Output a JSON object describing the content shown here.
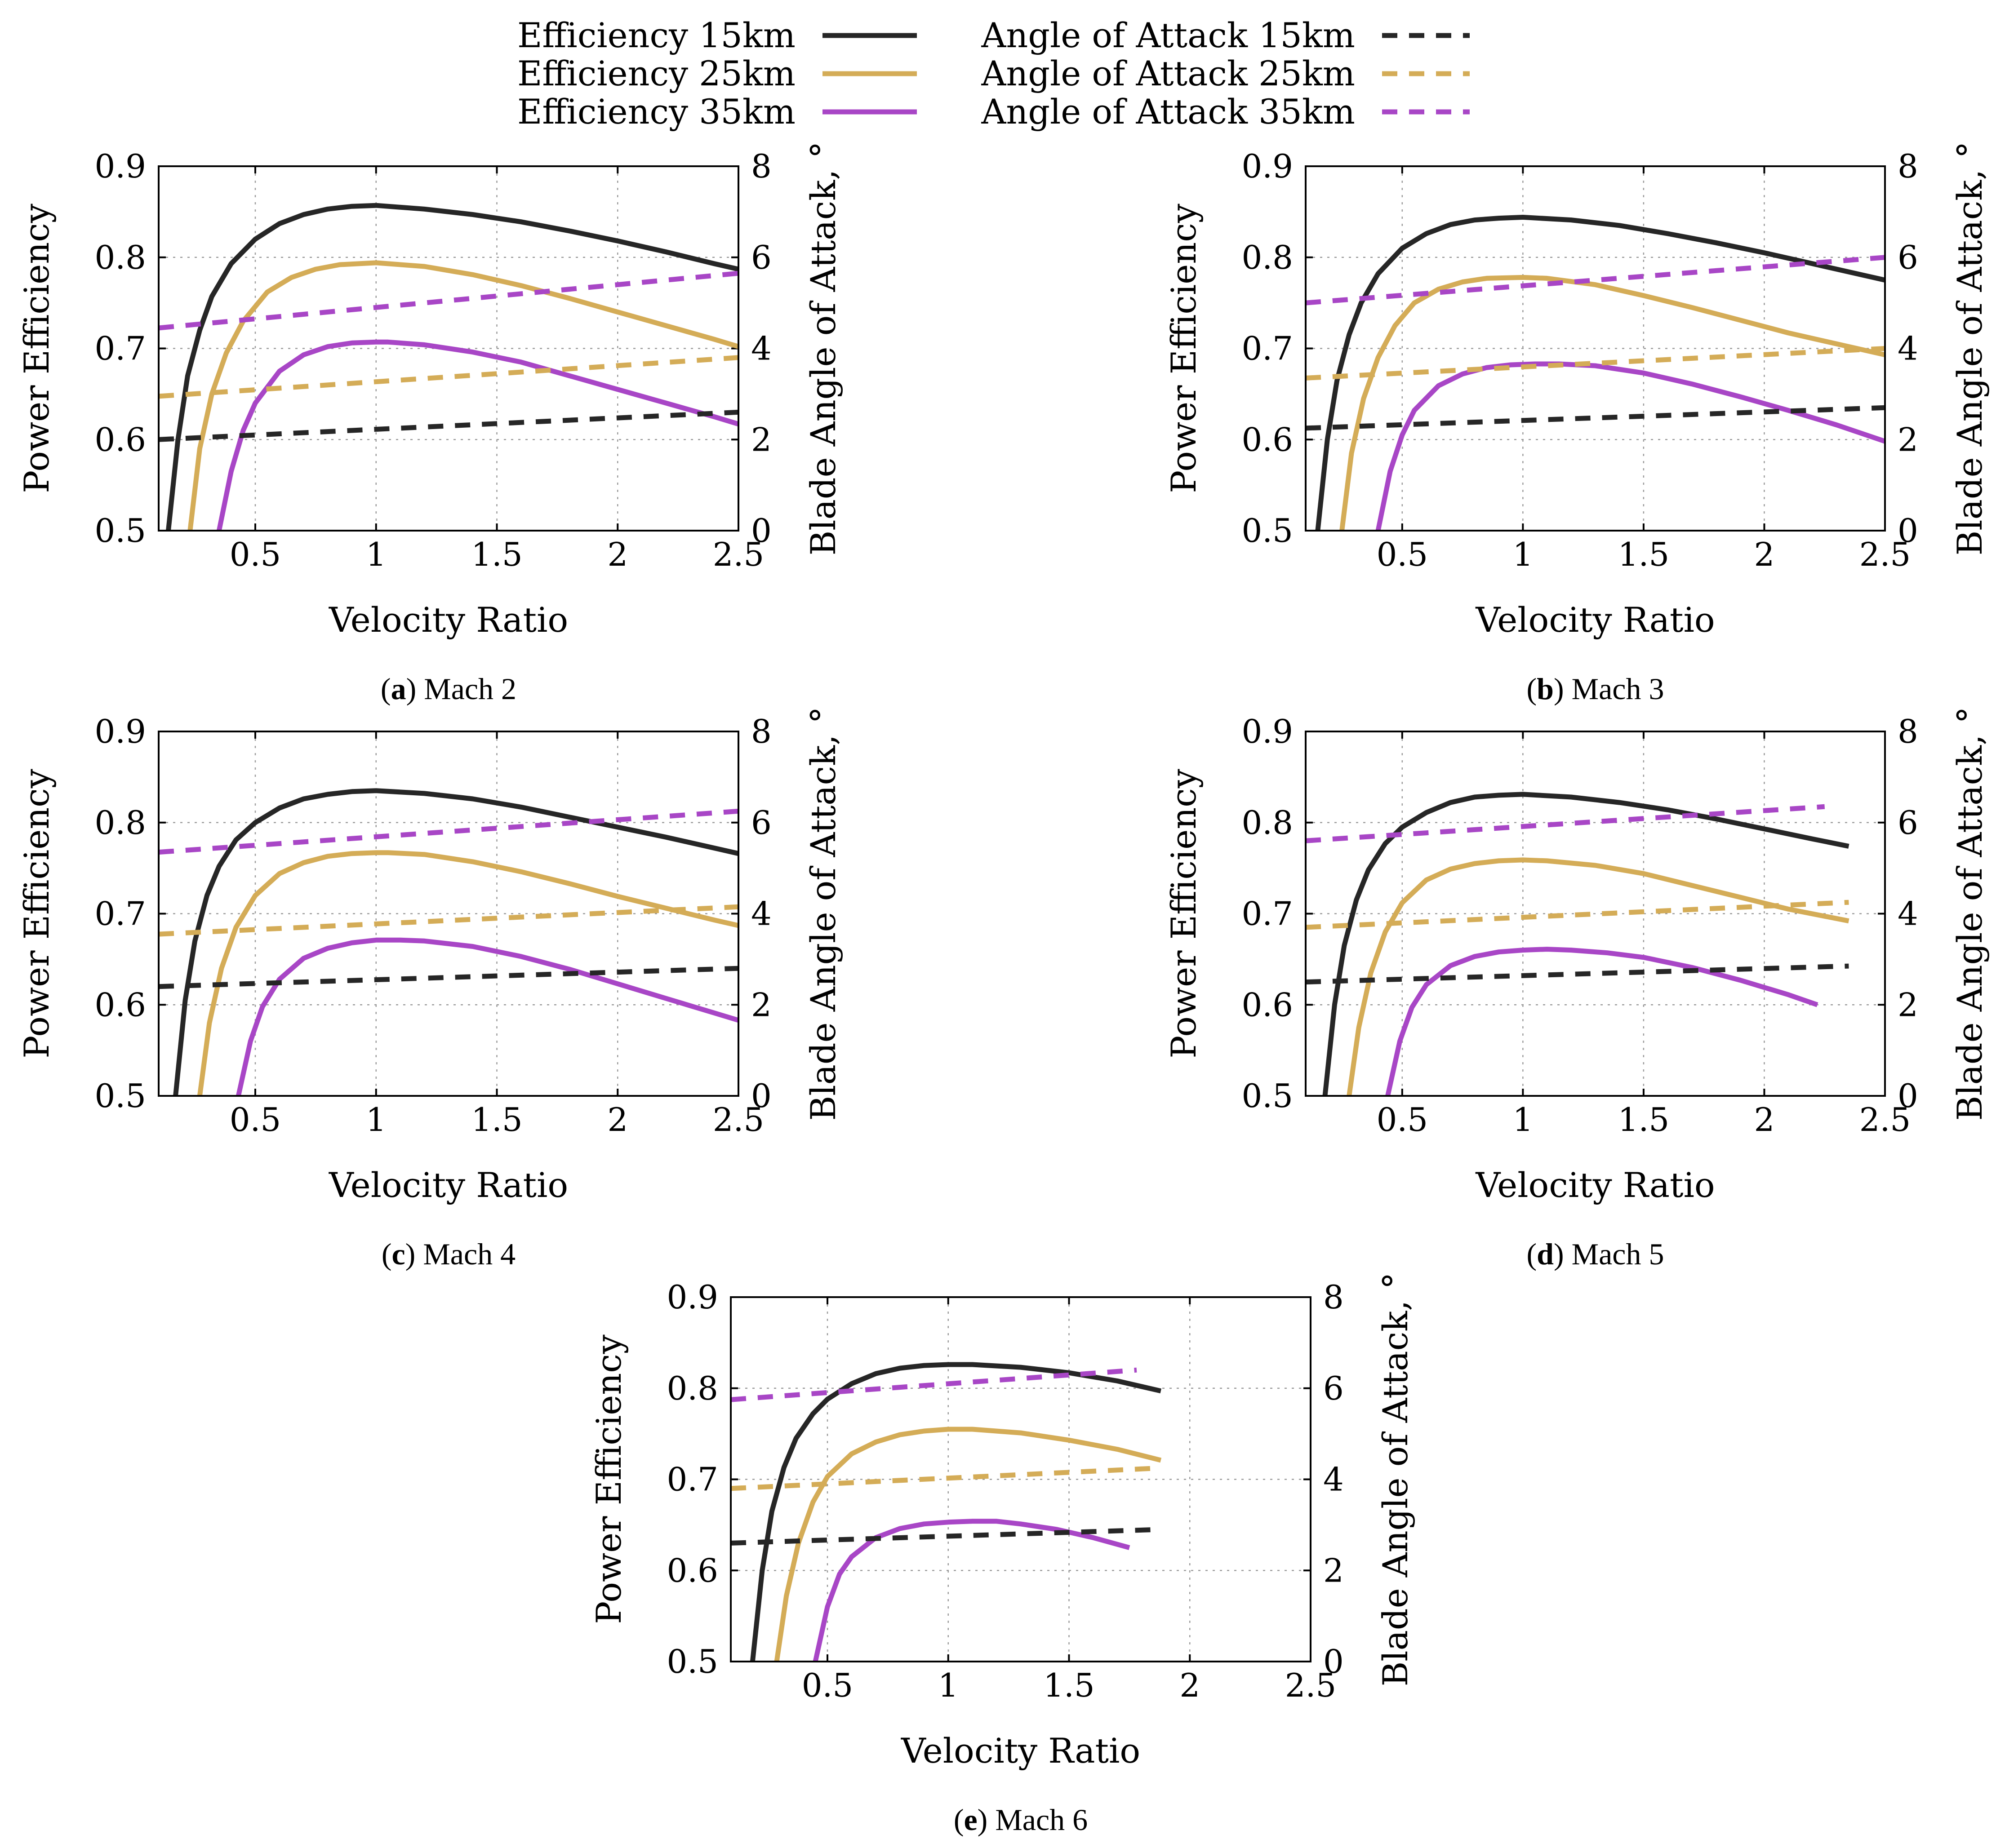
{
  "legend": {
    "items": [
      {
        "label": "Efficiency 15km",
        "altitude": "15km",
        "kind": "efficiency",
        "color": "#262626"
      },
      {
        "label": "Efficiency 25km",
        "altitude": "25km",
        "kind": "efficiency",
        "color": "#d4ac57"
      },
      {
        "label": "Efficiency 35km",
        "altitude": "35km",
        "kind": "efficiency",
        "color": "#a846c6"
      },
      {
        "label": "Angle of Attack 15km",
        "altitude": "15km",
        "kind": "aoa",
        "color": "#262626"
      },
      {
        "label": "Angle of Attack 25km",
        "altitude": "25km",
        "kind": "aoa",
        "color": "#d4ac57"
      },
      {
        "label": "Angle of Attack 35km",
        "altitude": "35km",
        "kind": "aoa",
        "color": "#a846c6"
      }
    ]
  },
  "chart_data": [
    {
      "type": "line",
      "caption_letter": "a",
      "caption_text": "Mach 2",
      "xlabel": "Velocity Ratio",
      "ylabel": "Power Efficiency",
      "y2label": "Blade Angle of Attack, °",
      "xlim": [
        0.1,
        2.5
      ],
      "ylim": [
        0.5,
        0.9
      ],
      "y2lim": [
        0,
        8
      ],
      "xticks": [
        "0.5",
        "1",
        "1.5",
        "2",
        "2.5"
      ],
      "yticks": [
        "0.5",
        "0.6",
        "0.7",
        "0.8",
        "0.9"
      ],
      "y2ticks": [
        "0",
        "2",
        "4",
        "6",
        "8"
      ],
      "grid": true,
      "series": [
        {
          "name": "Efficiency 15km",
          "axis": "y",
          "x": [
            0.14,
            0.18,
            0.22,
            0.27,
            0.32,
            0.4,
            0.5,
            0.6,
            0.7,
            0.8,
            0.9,
            1.0,
            1.2,
            1.4,
            1.6,
            1.8,
            2.0,
            2.2,
            2.4,
            2.5
          ],
          "values": [
            0.5,
            0.6,
            0.67,
            0.72,
            0.757,
            0.793,
            0.82,
            0.837,
            0.847,
            0.853,
            0.856,
            0.857,
            0.853,
            0.847,
            0.839,
            0.829,
            0.818,
            0.806,
            0.793,
            0.787
          ]
        },
        {
          "name": "Efficiency 25km",
          "axis": "y",
          "x": [
            0.23,
            0.27,
            0.32,
            0.38,
            0.45,
            0.55,
            0.65,
            0.75,
            0.85,
            1.0,
            1.2,
            1.4,
            1.6,
            1.8,
            2.0,
            2.2,
            2.4,
            2.5
          ],
          "values": [
            0.5,
            0.59,
            0.65,
            0.695,
            0.73,
            0.762,
            0.778,
            0.787,
            0.792,
            0.794,
            0.79,
            0.781,
            0.769,
            0.755,
            0.74,
            0.725,
            0.71,
            0.702
          ]
        },
        {
          "name": "Efficiency 35km",
          "axis": "y",
          "x": [
            0.35,
            0.4,
            0.45,
            0.5,
            0.6,
            0.7,
            0.8,
            0.9,
            1.0,
            1.05,
            1.2,
            1.4,
            1.6,
            1.8,
            2.0,
            2.2,
            2.4,
            2.5
          ],
          "values": [
            0.5,
            0.565,
            0.61,
            0.64,
            0.675,
            0.693,
            0.702,
            0.706,
            0.707,
            0.707,
            0.704,
            0.696,
            0.685,
            0.67,
            0.655,
            0.64,
            0.625,
            0.617
          ]
        },
        {
          "name": "Angle of Attack 15km",
          "axis": "y2",
          "x": [
            0.1,
            2.5
          ],
          "values": [
            2.0,
            2.6
          ]
        },
        {
          "name": "Angle of Attack 25km",
          "axis": "y2",
          "x": [
            0.1,
            2.5
          ],
          "values": [
            2.95,
            3.8
          ]
        },
        {
          "name": "Angle of Attack 35km",
          "axis": "y2",
          "x": [
            0.1,
            2.5
          ],
          "values": [
            4.45,
            5.65
          ]
        }
      ]
    },
    {
      "type": "line",
      "caption_letter": "b",
      "caption_text": "Mach 3",
      "xlabel": "Velocity Ratio",
      "ylabel": "Power Efficiency",
      "y2label": "Blade Angle of Attack, °",
      "xlim": [
        0.1,
        2.5
      ],
      "ylim": [
        0.5,
        0.9
      ],
      "y2lim": [
        0,
        8
      ],
      "xticks": [
        "0.5",
        "1",
        "1.5",
        "2",
        "2.5"
      ],
      "yticks": [
        "0.5",
        "0.6",
        "0.7",
        "0.8",
        "0.9"
      ],
      "y2ticks": [
        "0",
        "2",
        "4",
        "6",
        "8"
      ],
      "grid": true,
      "series": [
        {
          "name": "Efficiency 15km",
          "axis": "y",
          "x": [
            0.15,
            0.19,
            0.23,
            0.28,
            0.33,
            0.4,
            0.5,
            0.6,
            0.7,
            0.8,
            0.9,
            1.0,
            1.2,
            1.4,
            1.6,
            1.8,
            2.0,
            2.2,
            2.4,
            2.5
          ],
          "values": [
            0.5,
            0.6,
            0.665,
            0.715,
            0.75,
            0.782,
            0.81,
            0.826,
            0.836,
            0.841,
            0.843,
            0.844,
            0.841,
            0.835,
            0.826,
            0.816,
            0.805,
            0.793,
            0.781,
            0.775
          ]
        },
        {
          "name": "Efficiency 25km",
          "axis": "y",
          "x": [
            0.25,
            0.29,
            0.34,
            0.4,
            0.47,
            0.55,
            0.65,
            0.75,
            0.85,
            1.0,
            1.1,
            1.3,
            1.5,
            1.7,
            1.9,
            2.1,
            2.3,
            2.5
          ],
          "values": [
            0.5,
            0.585,
            0.645,
            0.69,
            0.725,
            0.75,
            0.765,
            0.773,
            0.777,
            0.778,
            0.777,
            0.77,
            0.758,
            0.745,
            0.731,
            0.717,
            0.705,
            0.693
          ]
        },
        {
          "name": "Efficiency 35km",
          "axis": "y",
          "x": [
            0.4,
            0.45,
            0.5,
            0.55,
            0.65,
            0.75,
            0.85,
            0.95,
            1.05,
            1.15,
            1.3,
            1.5,
            1.7,
            1.9,
            2.1,
            2.3,
            2.5
          ],
          "values": [
            0.5,
            0.565,
            0.605,
            0.632,
            0.659,
            0.672,
            0.679,
            0.682,
            0.683,
            0.683,
            0.681,
            0.673,
            0.661,
            0.647,
            0.632,
            0.616,
            0.598
          ]
        },
        {
          "name": "Angle of Attack 15km",
          "axis": "y2",
          "x": [
            0.1,
            2.5
          ],
          "values": [
            2.25,
            2.7
          ]
        },
        {
          "name": "Angle of Attack 25km",
          "axis": "y2",
          "x": [
            0.1,
            2.5
          ],
          "values": [
            3.35,
            4.0
          ]
        },
        {
          "name": "Angle of Attack 35km",
          "axis": "y2",
          "x": [
            0.1,
            2.5
          ],
          "values": [
            5.0,
            6.0
          ]
        }
      ]
    },
    {
      "type": "line",
      "caption_letter": "c",
      "caption_text": "Mach 4",
      "xlabel": "Velocity Ratio",
      "ylabel": "Power Efficiency",
      "y2label": "Blade Angle of Attack, °",
      "xlim": [
        0.1,
        2.5
      ],
      "ylim": [
        0.5,
        0.9
      ],
      "y2lim": [
        0,
        8
      ],
      "xticks": [
        "0.5",
        "1",
        "1.5",
        "2",
        "2.5"
      ],
      "yticks": [
        "0.5",
        "0.6",
        "0.7",
        "0.8",
        "0.9"
      ],
      "y2ticks": [
        "0",
        "2",
        "4",
        "6",
        "8"
      ],
      "grid": true,
      "series": [
        {
          "name": "Efficiency 15km",
          "axis": "y",
          "x": [
            0.17,
            0.21,
            0.25,
            0.3,
            0.35,
            0.42,
            0.5,
            0.6,
            0.7,
            0.8,
            0.9,
            1.0,
            1.2,
            1.4,
            1.6,
            1.8,
            2.0,
            2.2,
            2.4,
            2.5
          ],
          "values": [
            0.5,
            0.605,
            0.67,
            0.72,
            0.752,
            0.781,
            0.8,
            0.816,
            0.826,
            0.831,
            0.834,
            0.835,
            0.832,
            0.826,
            0.817,
            0.806,
            0.795,
            0.784,
            0.772,
            0.766
          ]
        },
        {
          "name": "Efficiency 25km",
          "axis": "y",
          "x": [
            0.27,
            0.31,
            0.36,
            0.42,
            0.5,
            0.6,
            0.7,
            0.8,
            0.9,
            1.0,
            1.05,
            1.2,
            1.4,
            1.6,
            1.8,
            2.0,
            2.2,
            2.4,
            2.5
          ],
          "values": [
            0.5,
            0.58,
            0.64,
            0.685,
            0.72,
            0.744,
            0.756,
            0.763,
            0.766,
            0.767,
            0.767,
            0.765,
            0.757,
            0.746,
            0.733,
            0.719,
            0.706,
            0.693,
            0.687
          ]
        },
        {
          "name": "Efficiency 35km",
          "axis": "y",
          "x": [
            0.43,
            0.48,
            0.53,
            0.6,
            0.7,
            0.8,
            0.9,
            1.0,
            1.1,
            1.2,
            1.4,
            1.6,
            1.8,
            2.0,
            2.2,
            2.4,
            2.5
          ],
          "values": [
            0.5,
            0.56,
            0.598,
            0.628,
            0.651,
            0.662,
            0.668,
            0.671,
            0.671,
            0.67,
            0.664,
            0.653,
            0.639,
            0.623,
            0.607,
            0.591,
            0.583
          ]
        },
        {
          "name": "Angle of Attack 15km",
          "axis": "y2",
          "x": [
            0.1,
            2.5
          ],
          "values": [
            2.4,
            2.8
          ]
        },
        {
          "name": "Angle of Attack 25km",
          "axis": "y2",
          "x": [
            0.1,
            2.5
          ],
          "values": [
            3.55,
            4.15
          ]
        },
        {
          "name": "Angle of Attack 35km",
          "axis": "y2",
          "x": [
            0.1,
            2.5
          ],
          "values": [
            5.35,
            6.25
          ]
        }
      ]
    },
    {
      "type": "line",
      "caption_letter": "d",
      "caption_text": "Mach 5",
      "xlabel": "Velocity Ratio",
      "ylabel": "Power Efficiency",
      "y2label": "Blade Angle of Attack, °",
      "xlim": [
        0.1,
        2.5
      ],
      "ylim": [
        0.5,
        0.9
      ],
      "y2lim": [
        0,
        8
      ],
      "xticks": [
        "0.5",
        "1",
        "1.5",
        "2",
        "2.5"
      ],
      "yticks": [
        "0.5",
        "0.6",
        "0.7",
        "0.8",
        "0.9"
      ],
      "y2ticks": [
        "0",
        "2",
        "4",
        "6",
        "8"
      ],
      "grid": true,
      "series": [
        {
          "name": "Efficiency 15km",
          "axis": "y",
          "x": [
            0.18,
            0.22,
            0.26,
            0.31,
            0.36,
            0.43,
            0.5,
            0.6,
            0.7,
            0.8,
            0.9,
            1.0,
            1.2,
            1.4,
            1.6,
            1.8,
            2.0,
            2.2,
            2.35
          ],
          "values": [
            0.5,
            0.6,
            0.665,
            0.715,
            0.748,
            0.777,
            0.795,
            0.811,
            0.822,
            0.828,
            0.83,
            0.831,
            0.828,
            0.822,
            0.814,
            0.804,
            0.793,
            0.782,
            0.774
          ]
        },
        {
          "name": "Efficiency 25km",
          "axis": "y",
          "x": [
            0.28,
            0.32,
            0.37,
            0.43,
            0.5,
            0.6,
            0.7,
            0.8,
            0.9,
            1.0,
            1.1,
            1.3,
            1.5,
            1.7,
            1.9,
            2.1,
            2.35
          ],
          "values": [
            0.5,
            0.575,
            0.635,
            0.68,
            0.712,
            0.737,
            0.749,
            0.755,
            0.758,
            0.759,
            0.758,
            0.753,
            0.744,
            0.731,
            0.718,
            0.705,
            0.692
          ]
        },
        {
          "name": "Efficiency 35km",
          "axis": "y",
          "x": [
            0.44,
            0.49,
            0.54,
            0.6,
            0.7,
            0.8,
            0.9,
            1.0,
            1.1,
            1.2,
            1.35,
            1.5,
            1.7,
            1.9,
            2.1,
            2.22
          ],
          "values": [
            0.5,
            0.56,
            0.597,
            0.622,
            0.643,
            0.653,
            0.658,
            0.66,
            0.661,
            0.66,
            0.657,
            0.652,
            0.641,
            0.627,
            0.611,
            0.6
          ]
        },
        {
          "name": "Angle of Attack 15km",
          "axis": "y2",
          "x": [
            0.1,
            2.35
          ],
          "values": [
            2.5,
            2.85
          ]
        },
        {
          "name": "Angle of Attack 25km",
          "axis": "y2",
          "x": [
            0.1,
            2.35
          ],
          "values": [
            3.7,
            4.25
          ]
        },
        {
          "name": "Angle of Attack 35km",
          "axis": "y2",
          "x": [
            0.1,
            2.25
          ],
          "values": [
            5.6,
            6.35
          ]
        }
      ]
    },
    {
      "type": "line",
      "caption_letter": "e",
      "caption_text": "Mach 6",
      "xlabel": "Velocity Ratio",
      "ylabel": "Power Efficiency",
      "y2label": "Blade Angle of Attack, °",
      "xlim": [
        0.1,
        2.5
      ],
      "ylim": [
        0.5,
        0.9
      ],
      "y2lim": [
        0,
        8
      ],
      "xticks": [
        "0.5",
        "1",
        "1.5",
        "2",
        "2.5"
      ],
      "yticks": [
        "0.5",
        "0.6",
        "0.7",
        "0.8",
        "0.9"
      ],
      "y2ticks": [
        "0",
        "2",
        "4",
        "6",
        "8"
      ],
      "grid": true,
      "series": [
        {
          "name": "Efficiency 15km",
          "axis": "y",
          "x": [
            0.19,
            0.23,
            0.27,
            0.32,
            0.37,
            0.44,
            0.5,
            0.6,
            0.7,
            0.8,
            0.9,
            1.0,
            1.1,
            1.3,
            1.5,
            1.7,
            1.88
          ],
          "values": [
            0.5,
            0.6,
            0.665,
            0.713,
            0.745,
            0.772,
            0.788,
            0.805,
            0.816,
            0.822,
            0.825,
            0.826,
            0.826,
            0.823,
            0.817,
            0.808,
            0.797
          ]
        },
        {
          "name": "Efficiency 25km",
          "axis": "y",
          "x": [
            0.29,
            0.33,
            0.38,
            0.44,
            0.5,
            0.6,
            0.7,
            0.8,
            0.9,
            1.0,
            1.1,
            1.3,
            1.5,
            1.7,
            1.88
          ],
          "values": [
            0.5,
            0.572,
            0.63,
            0.675,
            0.703,
            0.728,
            0.741,
            0.749,
            0.753,
            0.755,
            0.755,
            0.751,
            0.743,
            0.733,
            0.721
          ]
        },
        {
          "name": "Efficiency 35km",
          "axis": "y",
          "x": [
            0.45,
            0.5,
            0.55,
            0.6,
            0.7,
            0.8,
            0.9,
            1.0,
            1.1,
            1.2,
            1.3,
            1.45,
            1.6,
            1.75
          ],
          "values": [
            0.5,
            0.56,
            0.596,
            0.615,
            0.636,
            0.646,
            0.651,
            0.653,
            0.654,
            0.654,
            0.651,
            0.645,
            0.636,
            0.625
          ]
        },
        {
          "name": "Angle of Attack 15km",
          "axis": "y2",
          "x": [
            0.1,
            1.88
          ],
          "values": [
            2.6,
            2.9
          ]
        },
        {
          "name": "Angle of Attack 25km",
          "axis": "y2",
          "x": [
            0.1,
            1.88
          ],
          "values": [
            3.8,
            4.25
          ]
        },
        {
          "name": "Angle of Attack 35km",
          "axis": "y2",
          "x": [
            0.1,
            1.78
          ],
          "values": [
            5.75,
            6.4
          ]
        }
      ]
    }
  ]
}
